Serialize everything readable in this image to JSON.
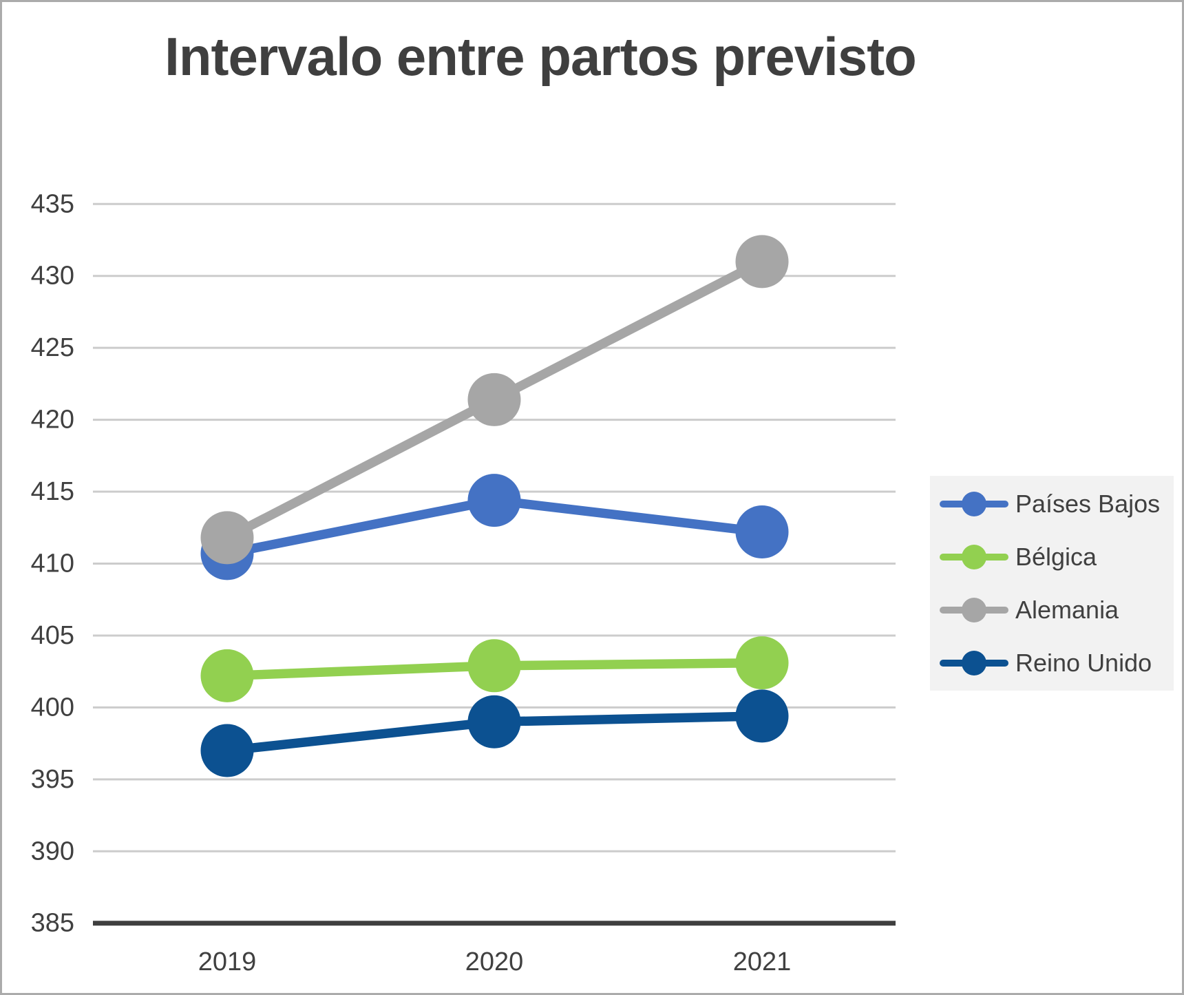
{
  "chart_data": {
    "type": "line",
    "title": "Intervalo entre partos previsto",
    "categories": [
      "2019",
      "2020",
      "2021"
    ],
    "series": [
      {
        "name": "Países Bajos",
        "color": "#4472C4",
        "values": [
          410.7,
          414.4,
          412.2
        ]
      },
      {
        "name": "Bélgica",
        "color": "#92D050",
        "values": [
          402.2,
          402.9,
          403.1
        ]
      },
      {
        "name": "Alemania",
        "color": "#A6A6A6",
        "values": [
          411.8,
          421.4,
          431.0
        ]
      },
      {
        "name": "Reino Unido",
        "color": "#0C5191",
        "values": [
          397.0,
          399.0,
          399.4
        ]
      }
    ],
    "ylim": [
      385,
      435
    ],
    "ytick_step": 5,
    "ytick_labels": [
      "385",
      "390",
      "395",
      "400",
      "405",
      "410",
      "415",
      "420",
      "425",
      "430",
      "435"
    ],
    "grid": "horizontal",
    "legend_position": "right",
    "xlabel": "",
    "ylabel": ""
  },
  "theme": {
    "title_color": "#3F3F3F",
    "tick_label_color": "#404040",
    "gridline_color": "#CCCCCC",
    "axis_line_color": "#3F3F3F",
    "legend_background": "#F2F2F2",
    "legend_text_color": "#404040",
    "frame_border_color": "#ABABAB",
    "background": "#FFFFFF"
  }
}
